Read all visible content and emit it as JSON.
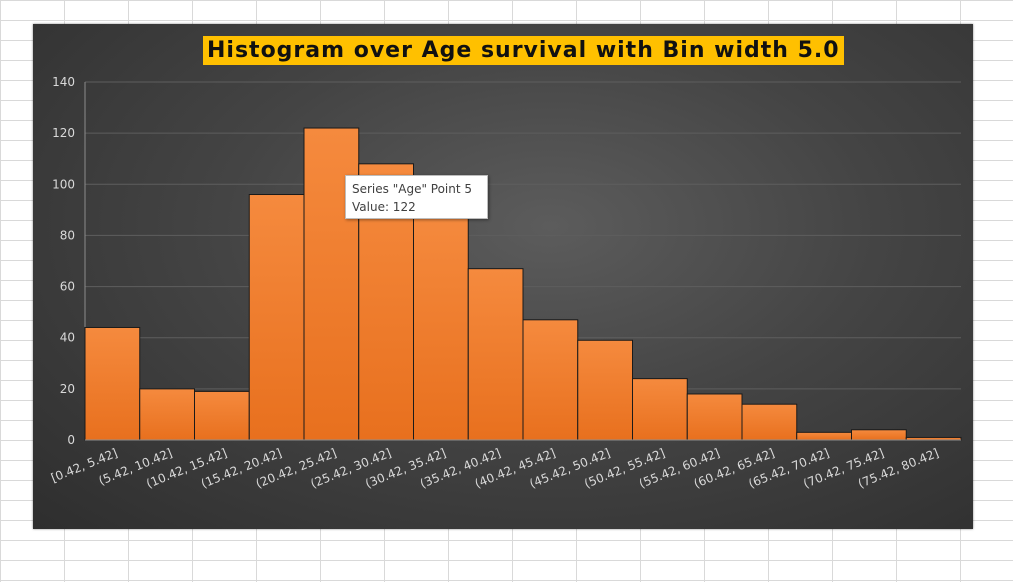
{
  "chart_data": {
    "type": "bar",
    "title": "Histogram over Age survival with Bin width 5.0",
    "categories": [
      "[0.42, 5.42]",
      "(5.42, 10.42]",
      "(10.42, 15.42]",
      "(15.42, 20.42]",
      "(20.42, 25.42]",
      "(25.42, 30.42]",
      "(30.42, 35.42]",
      "(35.42, 40.42]",
      "(40.42, 45.42]",
      "(45.42, 50.42]",
      "(50.42, 55.42]",
      "(55.42, 60.42]",
      "(60.42, 65.42]",
      "(65.42, 70.42]",
      "(70.42, 75.42]",
      "(75.42, 80.42]"
    ],
    "series": [
      {
        "name": "Age",
        "values": [
          44,
          20,
          19,
          96,
          122,
          108,
          89,
          67,
          47,
          39,
          24,
          18,
          14,
          3,
          4,
          1
        ]
      }
    ],
    "ylim": [
      0,
      140
    ],
    "yticks": [
      0,
      20,
      40,
      60,
      80,
      100,
      120,
      140
    ],
    "grid": true,
    "bar_color": "#f07a26"
  },
  "tooltip": {
    "line1": "Series \"Age\" Point 5",
    "line2": "Value: 122"
  }
}
